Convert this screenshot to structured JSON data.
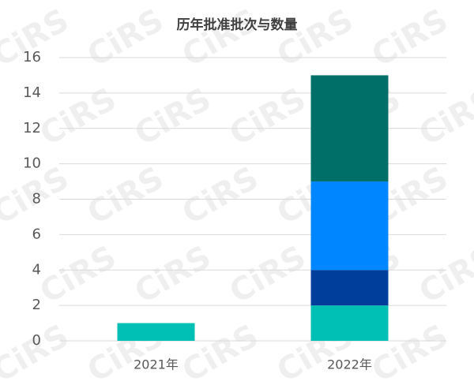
{
  "chart_data": {
    "type": "stacked_bar",
    "title": "历年批准批次与数量",
    "watermark": "CiRS",
    "categories": [
      "2021年",
      "2022年"
    ],
    "series": [
      {
        "color": "#00bfb5",
        "values": [
          1,
          2
        ]
      },
      {
        "color": "#003e9c",
        "values": [
          null,
          2
        ]
      },
      {
        "color": "#0087ff",
        "values": [
          null,
          5
        ]
      },
      {
        "color": "#006f67",
        "values": [
          null,
          6
        ]
      }
    ],
    "ylim": [
      0,
      16
    ],
    "yticks": [
      0,
      2,
      4,
      6,
      8,
      10,
      12,
      14,
      16
    ],
    "grid": true
  }
}
